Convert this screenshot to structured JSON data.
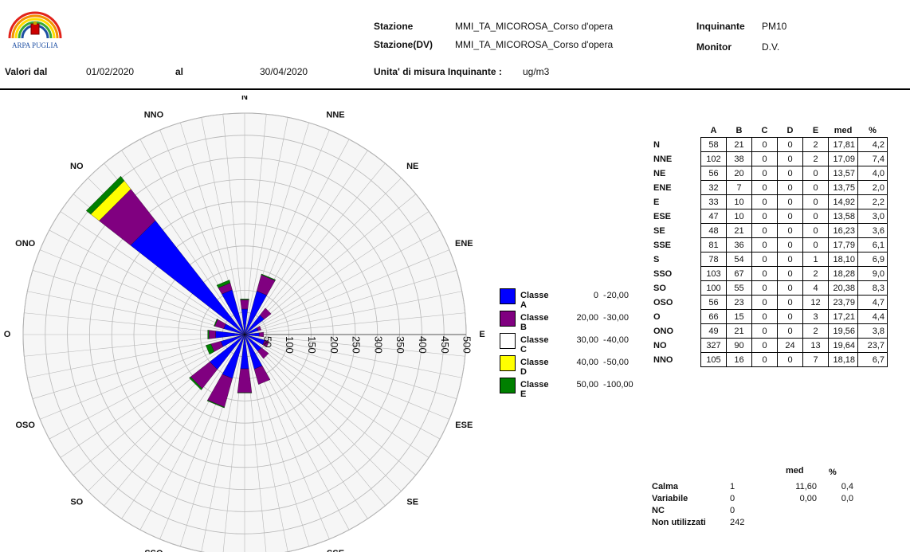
{
  "header": {
    "logo_text": "ARPA PUGLIA",
    "stazione_label": "Stazione",
    "stazione_value": "MMI_TA_MICOROSA_Corso d'opera",
    "stazione_dv_label": "Stazione(DV)",
    "stazione_dv_value": "MMI_TA_MICOROSA_Corso d'opera",
    "inquinante_label": "Inquinante",
    "inquinante_value": "PM10",
    "monitor_label": "Monitor",
    "monitor_value": "D.V.",
    "valori_dal_label": "Valori dal",
    "date_from": "01/02/2020",
    "al_label": "al",
    "date_to": "30/04/2020",
    "unita_label": "Unita' di misura Inquinante :",
    "unita_value": "ug/m3"
  },
  "colors": {
    "classe_a": "#0000ff",
    "classe_b": "#800080",
    "classe_c": "#ffffff",
    "classe_d": "#ffff00",
    "classe_e": "#008000",
    "grid": "#b8b8b8"
  },
  "legend": [
    {
      "name": "Classe A",
      "from": "0",
      "to": "20,00"
    },
    {
      "name": "Classe B",
      "from": "20,00",
      "to": "30,00"
    },
    {
      "name": "Classe C",
      "from": "30,00",
      "to": "40,00"
    },
    {
      "name": "Classe D",
      "from": "40,00",
      "to": "50,00"
    },
    {
      "name": "Classe E",
      "from": "50,00",
      "to": "100,00"
    }
  ],
  "table": {
    "headers": [
      "A",
      "B",
      "C",
      "D",
      "E",
      "med",
      "%"
    ],
    "rows": [
      {
        "dir": "N",
        "A": "58",
        "B": "21",
        "C": "0",
        "D": "0",
        "E": "2",
        "med": "17,81",
        "pct": "4,2"
      },
      {
        "dir": "NNE",
        "A": "102",
        "B": "38",
        "C": "0",
        "D": "0",
        "E": "2",
        "med": "17,09",
        "pct": "7,4"
      },
      {
        "dir": "NE",
        "A": "56",
        "B": "20",
        "C": "0",
        "D": "0",
        "E": "0",
        "med": "13,57",
        "pct": "4,0"
      },
      {
        "dir": "ENE",
        "A": "32",
        "B": "7",
        "C": "0",
        "D": "0",
        "E": "0",
        "med": "13,75",
        "pct": "2,0"
      },
      {
        "dir": "E",
        "A": "33",
        "B": "10",
        "C": "0",
        "D": "0",
        "E": "0",
        "med": "14,92",
        "pct": "2,2"
      },
      {
        "dir": "ESE",
        "A": "47",
        "B": "10",
        "C": "0",
        "D": "0",
        "E": "0",
        "med": "13,58",
        "pct": "3,0"
      },
      {
        "dir": "SE",
        "A": "48",
        "B": "21",
        "C": "0",
        "D": "0",
        "E": "0",
        "med": "16,23",
        "pct": "3,6"
      },
      {
        "dir": "SSE",
        "A": "81",
        "B": "36",
        "C": "0",
        "D": "0",
        "E": "0",
        "med": "17,79",
        "pct": "6,1"
      },
      {
        "dir": "S",
        "A": "78",
        "B": "54",
        "C": "0",
        "D": "0",
        "E": "1",
        "med": "18,10",
        "pct": "6,9"
      },
      {
        "dir": "SSO",
        "A": "103",
        "B": "67",
        "C": "0",
        "D": "0",
        "E": "2",
        "med": "18,28",
        "pct": "9,0"
      },
      {
        "dir": "SO",
        "A": "100",
        "B": "55",
        "C": "0",
        "D": "0",
        "E": "4",
        "med": "20,38",
        "pct": "8,3"
      },
      {
        "dir": "OSO",
        "A": "56",
        "B": "23",
        "C": "0",
        "D": "0",
        "E": "12",
        "med": "23,79",
        "pct": "4,7"
      },
      {
        "dir": "O",
        "A": "66",
        "B": "15",
        "C": "0",
        "D": "0",
        "E": "3",
        "med": "17,21",
        "pct": "4,4"
      },
      {
        "dir": "ONO",
        "A": "49",
        "B": "21",
        "C": "0",
        "D": "0",
        "E": "2",
        "med": "19,56",
        "pct": "3,8"
      },
      {
        "dir": "NO",
        "A": "327",
        "B": "90",
        "C": "0",
        "D": "24",
        "E": "13",
        "med": "19,64",
        "pct": "23,7"
      },
      {
        "dir": "NNO",
        "A": "105",
        "B": "16",
        "C": "0",
        "D": "0",
        "E": "7",
        "med": "18,18",
        "pct": "6,7"
      }
    ]
  },
  "stats": {
    "med_header": "med",
    "pct_header": "%",
    "rows": [
      {
        "label": "Calma",
        "n": "1",
        "med": "11,60",
        "pct": "0,4"
      },
      {
        "label": "Variabile",
        "n": "0",
        "med": "0,00",
        "pct": "0,0"
      },
      {
        "label": "NC",
        "n": "0",
        "med": "",
        "pct": ""
      },
      {
        "label": "Non utilizzati",
        "n": "242",
        "med": "",
        "pct": ""
      }
    ]
  },
  "chart_data": {
    "type": "wind-rose",
    "title": "",
    "directions": [
      "N",
      "NNE",
      "NE",
      "ENE",
      "E",
      "ESE",
      "SE",
      "SSE",
      "S",
      "SSO",
      "SO",
      "OSO",
      "O",
      "ONO",
      "NO",
      "NNO"
    ],
    "radial_ticks": [
      "50",
      "100",
      "150",
      "200",
      "250",
      "300",
      "350",
      "400",
      "450",
      "500"
    ],
    "radial_max": 500,
    "series": [
      {
        "name": "Classe A",
        "values": [
          58,
          102,
          56,
          32,
          33,
          47,
          48,
          81,
          78,
          103,
          100,
          56,
          66,
          49,
          327,
          105
        ]
      },
      {
        "name": "Classe B",
        "values": [
          21,
          38,
          20,
          7,
          10,
          10,
          21,
          36,
          54,
          67,
          55,
          23,
          15,
          21,
          90,
          16
        ]
      },
      {
        "name": "Classe C",
        "values": [
          0,
          0,
          0,
          0,
          0,
          0,
          0,
          0,
          0,
          0,
          0,
          0,
          0,
          0,
          0,
          0
        ]
      },
      {
        "name": "Classe D",
        "values": [
          0,
          0,
          0,
          0,
          0,
          0,
          0,
          0,
          0,
          0,
          0,
          0,
          0,
          0,
          24,
          0
        ]
      },
      {
        "name": "Classe E",
        "values": [
          2,
          2,
          0,
          0,
          0,
          0,
          0,
          0,
          1,
          2,
          4,
          12,
          3,
          2,
          13,
          7
        ]
      }
    ]
  }
}
